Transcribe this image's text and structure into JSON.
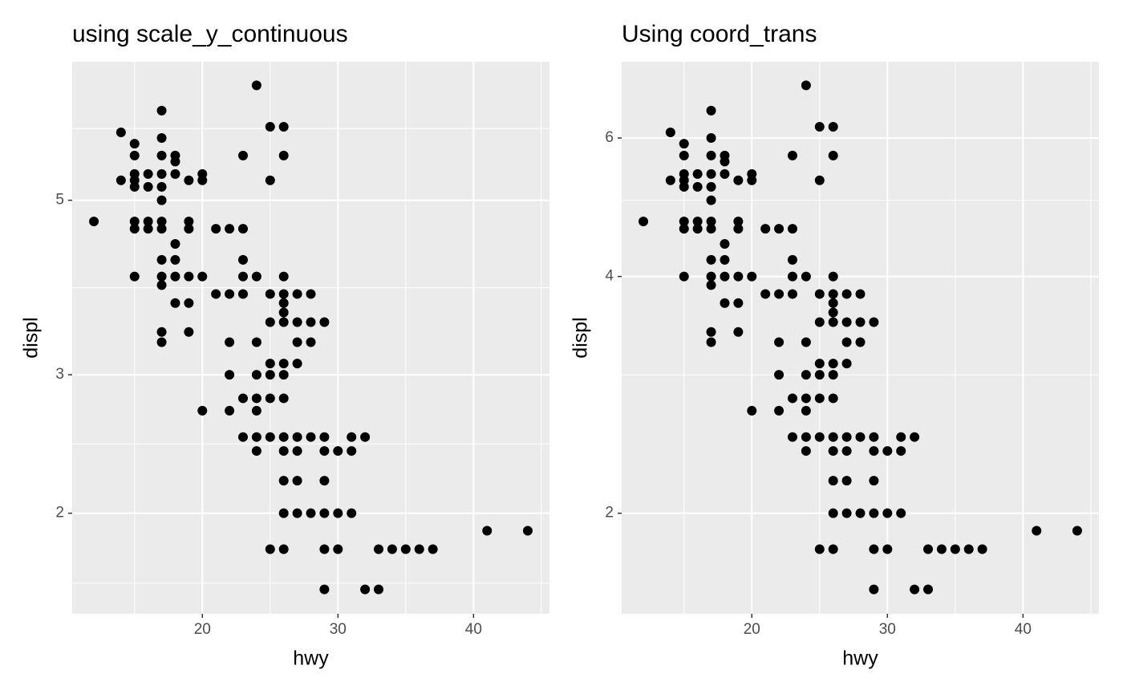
{
  "chart_data": [
    {
      "type": "scatter",
      "title": "using scale_y_continuous",
      "x_label": "hwy",
      "y_label": "displ",
      "y_scale": "log",
      "color": "#000000",
      "grid": true,
      "xlim": [
        10.4,
        45.6
      ],
      "ylim": [
        1.49,
        7.5
      ],
      "xticks": [
        20,
        30,
        40
      ],
      "yticks": [
        2,
        3,
        5
      ],
      "x_minor_ticks": [
        15,
        25,
        35,
        45
      ],
      "y_minor_ticks": [
        1.63,
        2.45,
        3.87,
        6.17
      ],
      "x": [
        12,
        14,
        14,
        15,
        15,
        15,
        15,
        15,
        15,
        15,
        15,
        16,
        16,
        16,
        16,
        17,
        17,
        17,
        17,
        17,
        17,
        17,
        17,
        17,
        17,
        17,
        17,
        17,
        18,
        18,
        18,
        18,
        18,
        18,
        18,
        19,
        19,
        19,
        19,
        19,
        19,
        20,
        20,
        20,
        20,
        21,
        21,
        22,
        22,
        22,
        22,
        22,
        23,
        23,
        23,
        23,
        23,
        23,
        23,
        24,
        24,
        24,
        24,
        24,
        24,
        24,
        24,
        25,
        25,
        25,
        25,
        25,
        25,
        25,
        25,
        25,
        26,
        26,
        26,
        26,
        26,
        26,
        26,
        26,
        26,
        26,
        26,
        26,
        26,
        26,
        26,
        27,
        27,
        27,
        27,
        27,
        27,
        27,
        27,
        28,
        28,
        28,
        28,
        28,
        29,
        29,
        29,
        29,
        29,
        29,
        29,
        30,
        30,
        30,
        31,
        31,
        31,
        32,
        32,
        33,
        33,
        34,
        35,
        36,
        37,
        41,
        44
      ],
      "y": [
        4.7,
        6.1,
        5.3,
        5.9,
        5.7,
        5.4,
        5.3,
        5.2,
        4.7,
        4.6,
        4.0,
        5.4,
        5.2,
        4.7,
        4.6,
        6.5,
        6.0,
        5.7,
        5.4,
        5.2,
        5.0,
        4.7,
        4.6,
        4.2,
        4.0,
        3.9,
        3.4,
        3.3,
        5.7,
        5.6,
        5.4,
        4.4,
        4.2,
        4.0,
        3.7,
        5.3,
        4.7,
        4.6,
        4.0,
        3.7,
        3.4,
        5.4,
        5.3,
        4.0,
        2.7,
        4.6,
        3.8,
        4.6,
        3.8,
        3.3,
        3.0,
        2.7,
        5.7,
        4.6,
        4.2,
        4.0,
        3.8,
        2.8,
        2.5,
        7.0,
        4.0,
        3.3,
        3.0,
        2.8,
        2.7,
        2.5,
        2.4,
        6.2,
        5.3,
        3.8,
        3.5,
        3.1,
        3.0,
        2.8,
        2.5,
        1.8,
        6.2,
        5.7,
        4.0,
        3.8,
        3.7,
        3.6,
        3.5,
        3.1,
        3.0,
        2.8,
        2.5,
        2.4,
        2.2,
        2.0,
        1.8,
        3.8,
        3.5,
        3.3,
        3.1,
        2.5,
        2.4,
        2.2,
        2.0,
        3.8,
        3.5,
        3.3,
        2.5,
        2.0,
        3.5,
        2.5,
        2.4,
        2.2,
        2.0,
        1.8,
        1.6,
        2.4,
        2.0,
        1.8,
        2.5,
        2.4,
        2.0,
        2.5,
        1.6,
        1.8,
        1.6,
        1.8,
        1.8,
        1.8,
        1.8,
        1.9,
        1.9
      ]
    },
    {
      "type": "scatter",
      "title": "Using coord_trans",
      "x_label": "hwy",
      "y_label": "displ",
      "y_scale": "log",
      "color": "#000000",
      "grid": true,
      "xlim": [
        10.4,
        45.6
      ],
      "ylim": [
        1.49,
        7.5
      ],
      "xticks": [
        20,
        30,
        40
      ],
      "yticks": [
        2,
        4,
        6
      ],
      "x_minor_ticks": [
        15,
        25,
        35,
        45
      ],
      "y_minor_ticks": [
        3,
        5
      ],
      "x": [
        12,
        14,
        14,
        15,
        15,
        15,
        15,
        15,
        15,
        15,
        15,
        16,
        16,
        16,
        16,
        17,
        17,
        17,
        17,
        17,
        17,
        17,
        17,
        17,
        17,
        17,
        17,
        17,
        18,
        18,
        18,
        18,
        18,
        18,
        18,
        19,
        19,
        19,
        19,
        19,
        19,
        20,
        20,
        20,
        20,
        21,
        21,
        22,
        22,
        22,
        22,
        22,
        23,
        23,
        23,
        23,
        23,
        23,
        23,
        24,
        24,
        24,
        24,
        24,
        24,
        24,
        24,
        25,
        25,
        25,
        25,
        25,
        25,
        25,
        25,
        25,
        26,
        26,
        26,
        26,
        26,
        26,
        26,
        26,
        26,
        26,
        26,
        26,
        26,
        26,
        26,
        27,
        27,
        27,
        27,
        27,
        27,
        27,
        27,
        28,
        28,
        28,
        28,
        28,
        29,
        29,
        29,
        29,
        29,
        29,
        29,
        30,
        30,
        30,
        31,
        31,
        31,
        32,
        32,
        33,
        33,
        34,
        35,
        36,
        37,
        41,
        44
      ],
      "y": [
        4.7,
        6.1,
        5.3,
        5.9,
        5.7,
        5.4,
        5.3,
        5.2,
        4.7,
        4.6,
        4.0,
        5.4,
        5.2,
        4.7,
        4.6,
        6.5,
        6.0,
        5.7,
        5.4,
        5.2,
        5.0,
        4.7,
        4.6,
        4.2,
        4.0,
        3.9,
        3.4,
        3.3,
        5.7,
        5.6,
        5.4,
        4.4,
        4.2,
        4.0,
        3.7,
        5.3,
        4.7,
        4.6,
        4.0,
        3.7,
        3.4,
        5.4,
        5.3,
        4.0,
        2.7,
        4.6,
        3.8,
        4.6,
        3.8,
        3.3,
        3.0,
        2.7,
        5.7,
        4.6,
        4.2,
        4.0,
        3.8,
        2.8,
        2.5,
        7.0,
        4.0,
        3.3,
        3.0,
        2.8,
        2.7,
        2.5,
        2.4,
        6.2,
        5.3,
        3.8,
        3.5,
        3.1,
        3.0,
        2.8,
        2.5,
        1.8,
        6.2,
        5.7,
        4.0,
        3.8,
        3.7,
        3.6,
        3.5,
        3.1,
        3.0,
        2.8,
        2.5,
        2.4,
        2.2,
        2.0,
        1.8,
        3.8,
        3.5,
        3.3,
        3.1,
        2.5,
        2.4,
        2.2,
        2.0,
        3.8,
        3.5,
        3.3,
        2.5,
        2.0,
        3.5,
        2.5,
        2.4,
        2.2,
        2.0,
        1.8,
        1.6,
        2.4,
        2.0,
        1.8,
        2.5,
        2.4,
        2.0,
        2.5,
        1.6,
        1.8,
        1.6,
        1.8,
        1.8,
        1.8,
        1.8,
        1.9,
        1.9
      ]
    }
  ]
}
